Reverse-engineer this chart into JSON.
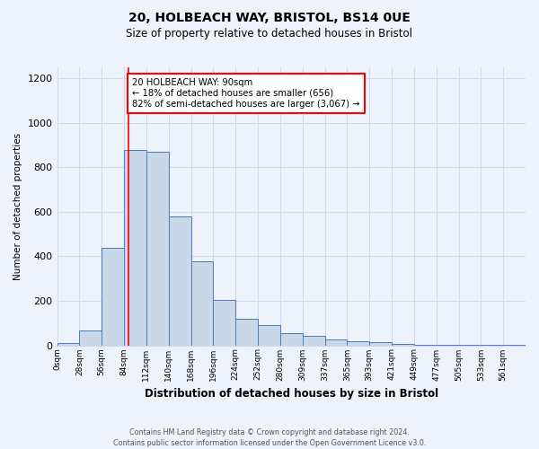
{
  "title1": "20, HOLBEACH WAY, BRISTOL, BS14 0UE",
  "title2": "Size of property relative to detached houses in Bristol",
  "xlabel": "Distribution of detached houses by size in Bristol",
  "ylabel": "Number of detached properties",
  "footnote1": "Contains HM Land Registry data © Crown copyright and database right 2024.",
  "footnote2": "Contains public sector information licensed under the Open Government Licence v3.0.",
  "bin_labels": [
    "0sqm",
    "28sqm",
    "56sqm",
    "84sqm",
    "112sqm",
    "140sqm",
    "168sqm",
    "196sqm",
    "224sqm",
    "252sqm",
    "280sqm",
    "309sqm",
    "337sqm",
    "365sqm",
    "393sqm",
    "421sqm",
    "449sqm",
    "477sqm",
    "505sqm",
    "533sqm",
    "561sqm"
  ],
  "bar_values": [
    10,
    65,
    440,
    880,
    870,
    580,
    378,
    205,
    120,
    90,
    55,
    42,
    25,
    18,
    15,
    7,
    4,
    3,
    2,
    2,
    2
  ],
  "bar_color": "#c8d8e8",
  "bar_edgecolor": "#4a7ab5",
  "bg_color": "#eef2fb",
  "grid_color": "#d0d8ee",
  "annotation_line1": "20 HOLBEACH WAY: 90sqm",
  "annotation_line2": "← 18% of detached houses are smaller (656)",
  "annotation_line3": "82% of semi-detached houses are larger (3,067) →",
  "annotation_box_color": "white",
  "annotation_box_edge": "red",
  "ylim": [
    0,
    1250
  ],
  "yticks": [
    0,
    200,
    400,
    600,
    800,
    1000,
    1200
  ]
}
